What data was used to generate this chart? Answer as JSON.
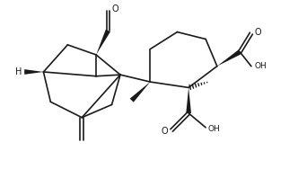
{
  "background": "#ffffff",
  "line_color": "#1a1a1a",
  "lw": 1.2,
  "figsize": [
    3.22,
    1.98
  ],
  "dpi": 100,
  "xlim": [
    0,
    10
  ],
  "ylim": [
    0,
    6.2
  ]
}
